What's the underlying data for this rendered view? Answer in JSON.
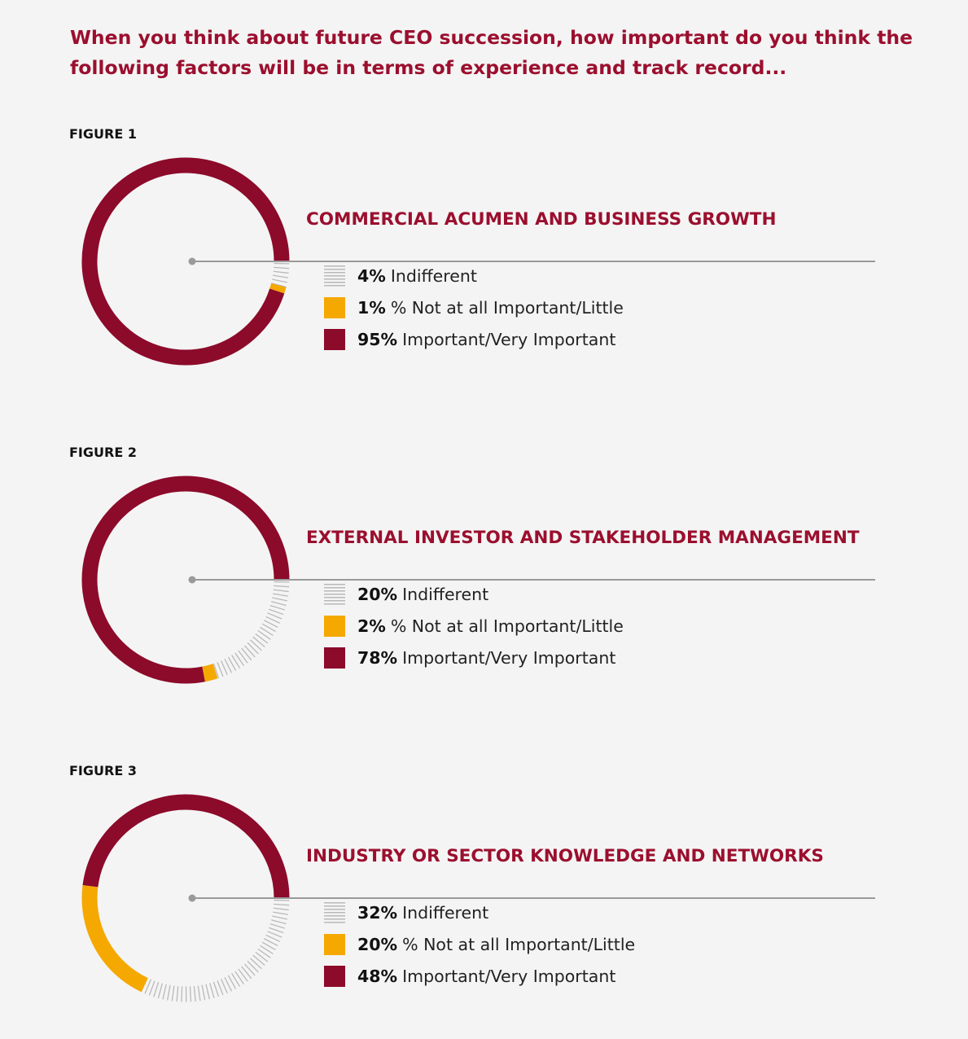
{
  "headline": "When you think about future CEO succession, how important do you think the following factors will be in terms of experience and track record...",
  "colors": {
    "title": "#9b0f2e",
    "important": "#8c0a2a",
    "not_important": "#f5a800",
    "indifferent": "#b9b9b9",
    "leader_line": "#9a9a9a"
  },
  "figures": [
    {
      "label": "FIGURE 1",
      "title": "COMMERCIAL ACUMEN AND BUSINESS GROWTH",
      "legend": [
        {
          "pct": "4%",
          "text": "Indifferent"
        },
        {
          "pct": "1%",
          "text": "% Not at all Important/Little"
        },
        {
          "pct": "95%",
          "text": "Important/Very Important"
        }
      ]
    },
    {
      "label": "FIGURE 2",
      "title": "EXTERNAL INVESTOR AND STAKEHOLDER MANAGEMENT",
      "legend": [
        {
          "pct": "20%",
          "text": "Indifferent"
        },
        {
          "pct": "2%",
          "text": "% Not at all Important/Little"
        },
        {
          "pct": "78%",
          "text": "Important/Very Important"
        }
      ]
    },
    {
      "label": "FIGURE 3",
      "title": "INDUSTRY OR SECTOR KNOWLEDGE AND NETWORKS",
      "legend": [
        {
          "pct": "32%",
          "text": "Indifferent"
        },
        {
          "pct": "20%",
          "text": "% Not at all Important/Little"
        },
        {
          "pct": "48%",
          "text": "Important/Very Important"
        }
      ]
    }
  ],
  "chart_data": [
    {
      "type": "pie",
      "title": "COMMERCIAL ACUMEN AND BUSINESS GROWTH",
      "categories": [
        "Indifferent",
        "% Not at all Important/Little",
        "Important/Very Important"
      ],
      "values": [
        4,
        1,
        95
      ],
      "colors": [
        "#b9b9b9",
        "#f5a800",
        "#8c0a2a"
      ]
    },
    {
      "type": "pie",
      "title": "EXTERNAL INVESTOR AND STAKEHOLDER MANAGEMENT",
      "categories": [
        "Indifferent",
        "% Not at all Important/Little",
        "Important/Very Important"
      ],
      "values": [
        20,
        2,
        78
      ],
      "colors": [
        "#b9b9b9",
        "#f5a800",
        "#8c0a2a"
      ]
    },
    {
      "type": "pie",
      "title": "INDUSTRY OR SECTOR KNOWLEDGE AND NETWORKS",
      "categories": [
        "Indifferent",
        "% Not at all Important/Little",
        "Important/Very Important"
      ],
      "values": [
        32,
        20,
        48
      ],
      "colors": [
        "#b9b9b9",
        "#f5a800",
        "#8c0a2a"
      ]
    }
  ]
}
